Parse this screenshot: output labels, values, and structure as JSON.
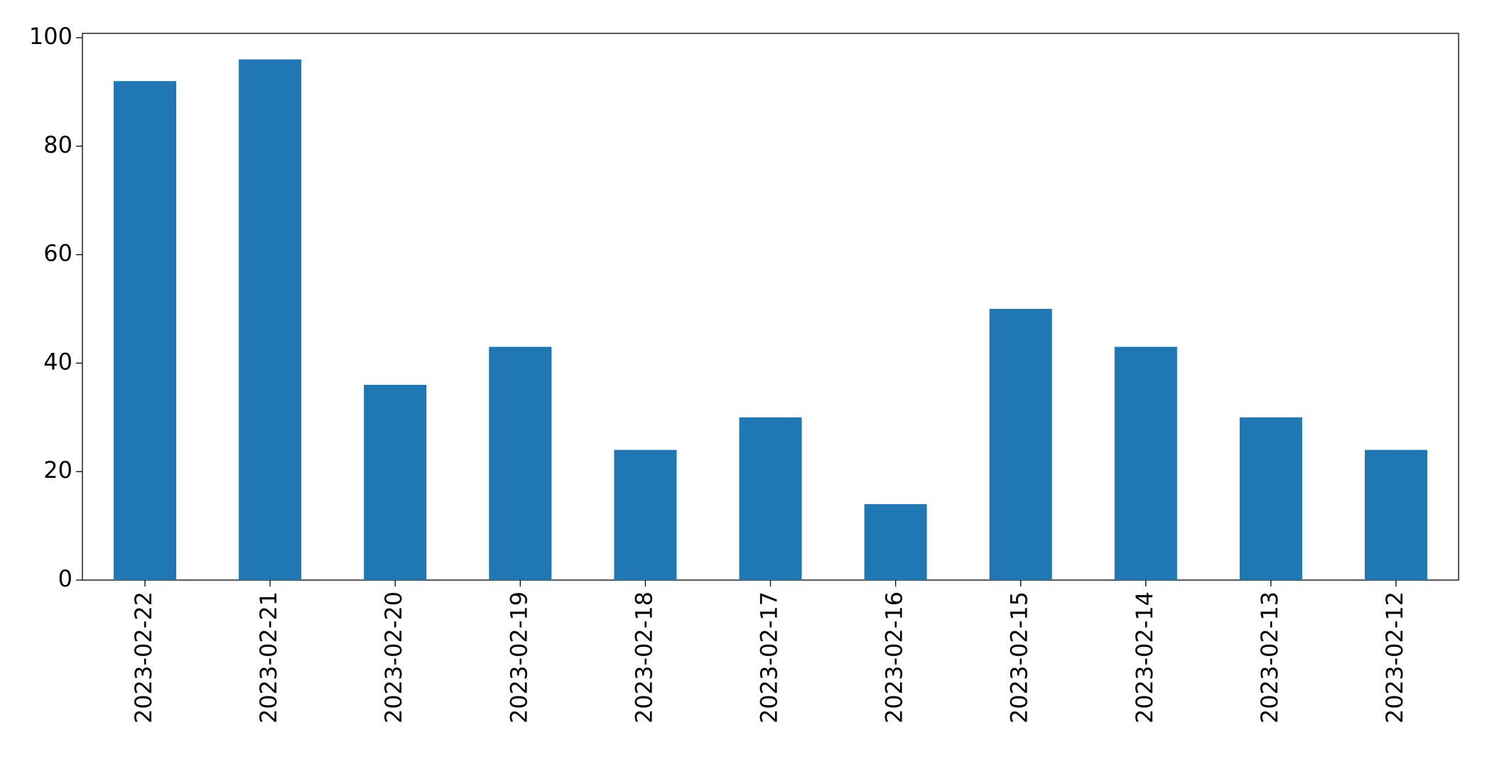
{
  "chart_data": {
    "type": "bar",
    "categories": [
      "2023-02-22",
      "2023-02-21",
      "2023-02-20",
      "2023-02-19",
      "2023-02-18",
      "2023-02-17",
      "2023-02-16",
      "2023-02-15",
      "2023-02-14",
      "2023-02-13",
      "2023-02-12"
    ],
    "values": [
      92,
      96,
      36,
      43,
      24,
      30,
      14,
      50,
      43,
      30,
      24
    ],
    "color": "#1f77b4",
    "ylim": [
      0,
      100.8
    ],
    "yticks": [
      0,
      20,
      40,
      60,
      80,
      100
    ],
    "grid": false
  }
}
